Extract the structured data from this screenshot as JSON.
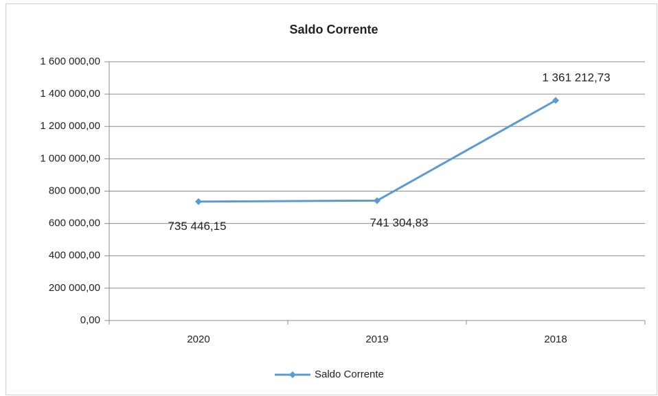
{
  "chart_data": {
    "type": "line",
    "title": "Saldo Corrente",
    "categories": [
      "2020",
      "2019",
      "2018"
    ],
    "series": [
      {
        "name": "Saldo Corrente",
        "color": "#5b9bd5",
        "values": [
          735446.15,
          741304.83,
          1361212.73
        ],
        "value_labels": [
          "735 446,15",
          "741 304,83",
          "1 361 212,73"
        ]
      }
    ],
    "ylim": [
      0,
      1600000
    ],
    "yticks": [
      {
        "value": 0,
        "label": "0,00"
      },
      {
        "value": 200000,
        "label": "200 000,00"
      },
      {
        "value": 400000,
        "label": "400 000,00"
      },
      {
        "value": 600000,
        "label": "600 000,00"
      },
      {
        "value": 800000,
        "label": "800 000,00"
      },
      {
        "value": 1000000,
        "label": "1 000 000,00"
      },
      {
        "value": 1200000,
        "label": "1 200 000,00"
      },
      {
        "value": 1400000,
        "label": "1 400 000,00"
      },
      {
        "value": 1600000,
        "label": "1 600 000,00"
      }
    ],
    "grid": true,
    "legend": "bottom"
  }
}
